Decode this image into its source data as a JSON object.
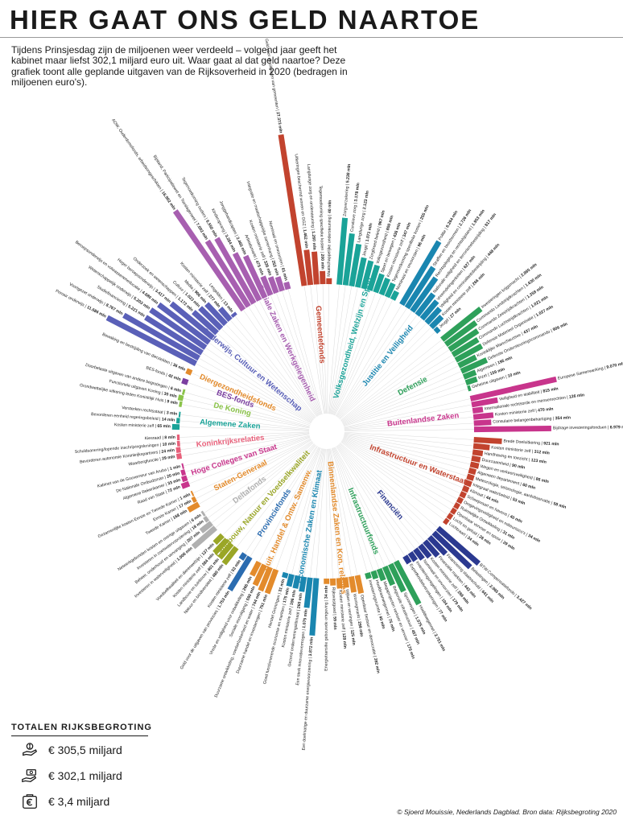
{
  "title": "HIER GAAT ONS GELD NAARTOE",
  "subtitle": "Tijdens Prinsjesdag zijn de miljoenen weer verdeeld – volgend jaar geeft het kabinet maar liefst 302,1 miljard euro uit. Waar gaat al dat geld naartoe? Deze grafiek toont alle geplande uitgaven van de Rijksoverheid in 2020 (bedragen in miljoenen euro's).",
  "totals": {
    "title": "TOTALEN RIJKSBEGROTING",
    "rows": [
      {
        "value": "€ 305,5 miljard",
        "icon": "money-hand-icon"
      },
      {
        "value": "€ 302,1 miljard",
        "icon": "money-give-icon"
      },
      {
        "value": "€ 3,4 miljard",
        "icon": "euro-stamp-icon"
      }
    ]
  },
  "credit": "© Sjoerd Mouissie, Nederlands Dagblad. Bron data: Rijksbegroting 2020",
  "chart_data": {
    "type": "radial-bar",
    "unit": "mln",
    "categories": [
      {
        "name": "Gemeentefonds",
        "color": "#c2432e",
        "items": [
          {
            "label": "Geld voor de uitgaven van gemeenten",
            "value": 27373
          },
          {
            "label": "Uitkeringen beschermd wonen en GGZ",
            "value": 1462
          },
          {
            "label": "Langdurige zorg en ondersteuning",
            "value": 1260
          },
          {
            "label": "Tegemoetkoming specifieke kosten",
            "value": 200
          },
          {
            "label": "Maatschappelijke ondersteuning",
            "value": 40
          }
        ]
      },
      {
        "name": "Volksgezondheid, Welzijn en Sport",
        "color": "#1aa398",
        "items": [
          {
            "label": "Zorgverzekering",
            "value": 5238
          },
          {
            "label": "Curatieve zorg",
            "value": 3178
          },
          {
            "label": "Langdurige zorg",
            "value": 2123
          },
          {
            "label": "Jeugd",
            "value": 1071
          },
          {
            "label": "Zorgbreed beleid",
            "value": 967
          },
          {
            "label": "Volksgezondheid",
            "value": 800
          },
          {
            "label": "Sport en bewegen",
            "value": 436
          },
          {
            "label": "Kosten ministerie zelf",
            "value": 347
          },
          {
            "label": "Tegemoetkoming specifieke kosten",
            "value": 255
          },
          {
            "label": "Nominaal en onvoorzien",
            "value": 96
          }
        ]
      },
      {
        "name": "Justitie en Veiligheid",
        "color": "#1a86b0",
        "items": [
          {
            "label": "Politie",
            "value": 6264
          },
          {
            "label": "Straffen en beschermen",
            "value": 2726
          },
          {
            "label": "Rechtspleging en rechtsbijstand",
            "value": 1953
          },
          {
            "label": "Nationale veiligheid en terrorismebestrijding",
            "value": 817
          },
          {
            "label": "Vreemdelingenketen",
            "value": 627
          },
          {
            "label": "Veiligheid en criminaliteitsbestrijding",
            "value": 448
          },
          {
            "label": "Kosten ministerie zelf",
            "value": 266
          },
          {
            "label": "Jeugd",
            "value": 27
          }
        ]
      },
      {
        "name": "Defensie",
        "color": "#2ea05a",
        "items": [
          {
            "label": "Investeringen krijgsmacht",
            "value": 2865
          },
          {
            "label": "Commando Landstrijdkrachten",
            "value": 1630
          },
          {
            "label": "Commando Zeestrijdkrachten",
            "value": 1359
          },
          {
            "label": "Commando Luchtstrijdkrachten",
            "value": 1021
          },
          {
            "label": "Defensie Materieel Organisatie",
            "value": 1027
          },
          {
            "label": "Koninklijke Marechaussee",
            "value": 437
          },
          {
            "label": "Defensie Ondersteuningscommando",
            "value": 906
          },
          {
            "label": "Algemeen",
            "value": 195
          },
          {
            "label": "Inzet",
            "value": 159
          },
          {
            "label": "Geheime uitgaven",
            "value": 10
          }
        ]
      },
      {
        "name": "Buitenlandse Zaken",
        "color": "#c8358c",
        "items": [
          {
            "label": "Europese Samenwerking",
            "value": 9070
          },
          {
            "label": "Veiligheid en stabiliteit",
            "value": 815
          },
          {
            "label": "Internationale rechtsorde en mensenrechten",
            "value": 126
          },
          {
            "label": "Kosten ministerie zelf",
            "value": 470
          },
          {
            "label": "Consulaire belangenbehartiging",
            "value": 354
          },
          {
            "label": "Bijdrage investeringsfondsen",
            "value": 6979
          }
        ]
      },
      {
        "name": "Infrastructuur en Waterstaat",
        "color": "#c2432e",
        "items": [
          {
            "label": "Brede Doeluitkering",
            "value": 921
          },
          {
            "label": "Kosten ministerie zelf",
            "value": 312
          },
          {
            "label": "Handhaving en toezicht",
            "value": 123
          },
          {
            "label": "Duurzaamheid",
            "value": 90
          },
          {
            "label": "Wegen en verkeersveiligheid",
            "value": 86
          },
          {
            "label": "Algemeen departement",
            "value": 60
          },
          {
            "label": "Meteorologie, seismologie, aardobservatie",
            "value": 58
          },
          {
            "label": "Integraal waterbeleid",
            "value": 53
          },
          {
            "label": "Klimaat",
            "value": 44
          },
          {
            "label": "Scheepvaart en havens",
            "value": 40
          },
          {
            "label": "Omgevingsveiligheid en milieurisico's",
            "value": 34
          },
          {
            "label": "Ruimtelijke Ontwikkeling",
            "value": 31
          },
          {
            "label": "Openbaar vervoer en spoor",
            "value": 29
          },
          {
            "label": "Lucht en geluid",
            "value": 26
          },
          {
            "label": "Luchtvaart",
            "value": 24
          }
        ]
      },
      {
        "name": "Financiën",
        "color": "#2b3990",
        "items": [
          {
            "label": "BTW-Compensatiefonds",
            "value": 3427
          },
          {
            "label": "Belastingen",
            "value": 2965
          },
          {
            "label": "Financiering staatsschuld",
            "value": 641
          },
          {
            "label": "Financiële markten",
            "value": 442
          },
          {
            "label": "Kosten ministerie zelf",
            "value": 266
          },
          {
            "label": "Nominaal en onvoorzien",
            "value": 179
          },
          {
            "label": "Investeringsregelingen",
            "value": 104
          },
          {
            "label": "Exportkredietverzekeringen",
            "value": 77
          }
        ]
      },
      {
        "name": "Infrastructuurfonds",
        "color": "#2ea05a",
        "items": [
          {
            "label": "Hoofdwegennet",
            "value": 2751
          },
          {
            "label": "Spoorwegen",
            "value": 1075
          },
          {
            "label": "Regionale infrastructuur",
            "value": 457
          },
          {
            "label": "Megaprojecten verkeer en vervoer",
            "value": 170
          },
          {
            "label": "Hoofdvaarwegennet",
            "value": 75
          },
          {
            "label": "Investeringsruimte",
            "value": 40
          }
        ]
      },
      {
        "name": "Binnenlandse Zaken en Kon. relaties",
        "color": "#e38b2c",
        "items": [
          {
            "label": "Openbaar bestuur en democratie",
            "value": 392
          },
          {
            "label": "Woningmarkt",
            "value": 299
          },
          {
            "label": "Wijken en woningen",
            "value": 125
          },
          {
            "label": "Kosten ministerie zelf",
            "value": 128
          },
          {
            "label": "Rijksvastgoed",
            "value": 59
          },
          {
            "label": "Energietransitie gebouwde omgeving",
            "value": 34
          }
        ]
      },
      {
        "name": "Economische Zaken en Klimaat",
        "color": "#1a86b0",
        "items": [
          {
            "label": "Een doelmatige en duurzame energievoorziening",
            "value": 3872
          },
          {
            "label": "Een sterk innovatievermogen",
            "value": 1075
          },
          {
            "label": "Gezond ondernemingsklimaat",
            "value": 265
          },
          {
            "label": "Kosten ministerie zelf",
            "value": 196
          },
          {
            "label": "Goed functionerende economie en markten",
            "value": 175
          },
          {
            "label": "Herstel Groningen",
            "value": 31
          }
        ]
      },
      {
        "name": "Buit. Handel & Ontw. Samenw.",
        "color": "#e38b2c",
        "items": [
          {
            "label": "Duurzame handel en investeringen",
            "value": 751
          },
          {
            "label": "Duurzame ontwikkeling, voedselzekerheid en water",
            "value": 744
          },
          {
            "label": "Sociale vooruitgang",
            "value": 590
          },
          {
            "label": "Vrede en veiligheid voor ontwikkeling",
            "value": 266
          }
        ]
      },
      {
        "name": "Provinciefonds",
        "color": "#2b6cb0",
        "items": [
          {
            "label": "Geld voor de uitgaven van provincies",
            "value": 1753
          },
          {
            "label": "Kosten ministerie zelf",
            "value": 53
          }
        ]
      },
      {
        "name": "Landbouw, Natuur en Voedselkwaliteit",
        "color": "#9aa627",
        "items": [
          {
            "label": "Natuur en biodiversiteit",
            "value": 480
          },
          {
            "label": "Landbouw en tuinbouw",
            "value": 401
          },
          {
            "label": "Kosten ministerie zelf",
            "value": 384
          },
          {
            "label": "Voedselkwaliteit en dierenwelzijn",
            "value": 137
          }
        ]
      },
      {
        "name": "Deltafonds",
        "color": "#b0b0b0",
        "items": [
          {
            "label": "Investeren in waterveiligheid",
            "value": 1008
          },
          {
            "label": "Beheer, onderhoud en vervanging",
            "value": 207
          },
          {
            "label": "Investeren in zoetwatervoorziening",
            "value": 18
          },
          {
            "label": "Netwerkgebonden kosten en overige uitgaven",
            "value": 6
          }
        ]
      },
      {
        "name": "Staten-Generaal",
        "color": "#e38b2c",
        "items": [
          {
            "label": "Tweede Kamer",
            "value": 168
          },
          {
            "label": "Eerste Kamer",
            "value": 17
          },
          {
            "label": "Gezamenlijke kosten Eerste en Tweede Kamer",
            "value": 1
          }
        ]
      },
      {
        "name": "Hoge Colleges van Staat",
        "color": "#c8358c",
        "items": [
          {
            "label": "Raad van State",
            "value": 72
          },
          {
            "label": "Algemene Rekenkamer",
            "value": 33
          },
          {
            "label": "De Nationale Ombudsman",
            "value": 20
          },
          {
            "label": "Kabinet van de Gouverneur van Aruba",
            "value": 1
          }
        ]
      },
      {
        "name": "Koninkrijksrelaties",
        "color": "#e8607a",
        "items": [
          {
            "label": "Waarborgfunctie",
            "value": 29
          },
          {
            "label": "Bevorderen autonomie Koninkrijkspartners",
            "value": 24
          },
          {
            "label": "Schuldsanering/lopende inschrijvingsleningen",
            "value": 10
          },
          {
            "label": "Kiesraad",
            "value": 8
          }
        ]
      },
      {
        "name": "Algemene Zaken",
        "color": "#1aa398",
        "items": [
          {
            "label": "Kosten ministerie zelf",
            "value": 65
          },
          {
            "label": "Bevorderen eenheid regeringsbeleid",
            "value": 14
          },
          {
            "label": "Versterken rechtsstaat",
            "value": 3
          }
        ]
      },
      {
        "name": "De Koning",
        "color": "#8bc34a",
        "items": [
          {
            "label": "Grondwettelijke uitkering leden Koninklijk Huis",
            "value": 9
          },
          {
            "label": "Functionele uitgaven Koning",
            "value": 30
          },
          {
            "label": "Doorbelaste uitgaven van andere begrotingen",
            "value": 6
          }
        ]
      },
      {
        "name": "BES-fonds",
        "color": "#7b3fa0",
        "items": [
          {
            "label": "BES-fonds",
            "value": 42
          }
        ]
      },
      {
        "name": "Diergezondheidsfonds",
        "color": "#e38b2c",
        "items": [
          {
            "label": "Bewaking en bestrijding van dierziekten",
            "value": 36
          }
        ]
      },
      {
        "name": "Onderwijs, Cultuur en Wetenschap",
        "color": "#5a60b8",
        "items": [
          {
            "label": "Primair onderwijs",
            "value": 11686
          },
          {
            "label": "Voortgezet onderwijs",
            "value": 8767
          },
          {
            "label": "Studiefinanciering",
            "value": 5221
          },
          {
            "label": "Wetenschappelijk onderwijs",
            "value": 5203
          },
          {
            "label": "Beroepsonderwijs en volwasseneneducatie",
            "value": 4680
          },
          {
            "label": "Hoger beroepsonderwijs",
            "value": 3417
          },
          {
            "label": "Onderzoek en wetenschappen",
            "value": 1172
          },
          {
            "label": "Cultuur",
            "value": 1023
          },
          {
            "label": "Media",
            "value": 906
          },
          {
            "label": "Kosten ministerie zelf",
            "value": 277
          },
          {
            "label": "Lesgelden",
            "value": 13
          }
        ]
      },
      {
        "name": "Sociale Zaken en Werkgelegenheid",
        "color": "#a75fb0",
        "items": [
          {
            "label": "AOW, Ouderdomsfonds, arbeidsongeschikten",
            "value": 16902
          },
          {
            "label": "Bijstand, Participatiewet en Toeslagenwet",
            "value": 7003
          },
          {
            "label": "Tegemoetkoming ouders",
            "value": 6550
          },
          {
            "label": "Kinderopvang",
            "value": 3284
          },
          {
            "label": "Jonggehandicapten",
            "value": 2465
          },
          {
            "label": "Arbeidsmarkt",
            "value": 475
          },
          {
            "label": "Kosten ministerie zelf",
            "value": 336
          },
          {
            "label": "Integratie en maatschappelijke samenhang",
            "value": 252
          },
          {
            "label": "Nominaal en onvoorzien",
            "value": 61
          }
        ]
      }
    ]
  }
}
